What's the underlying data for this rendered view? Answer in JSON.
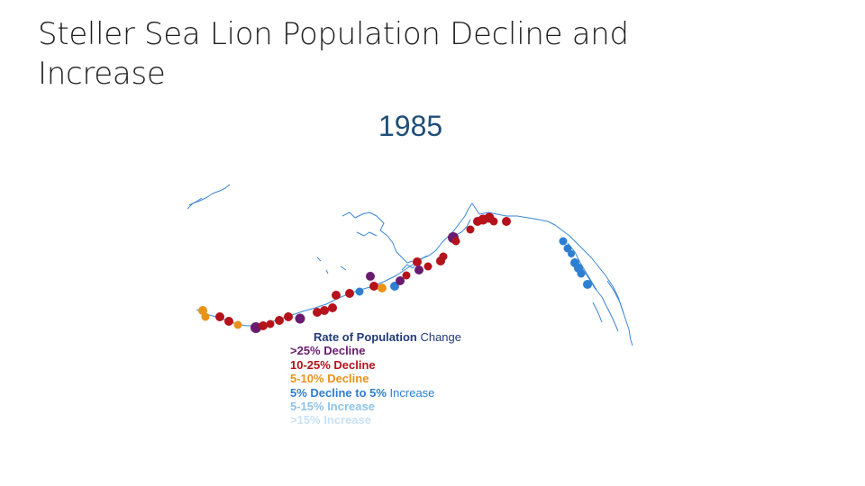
{
  "title": "Steller Sea Lion Population Decline and Increase",
  "year": "1985",
  "legend": {
    "title_bold": "Rate of Population",
    "title_light": " Change",
    "items": [
      {
        "label": ">25% Decline",
        "color": "#6a1b6e"
      },
      {
        "label": "10-25% Decline",
        "color": "#b5121b"
      },
      {
        "label": "5-10% Decline",
        "color": "#e8931a"
      },
      {
        "label_bold": "5% Decline to 5%",
        "label_light": " Increase",
        "color": "#2e7fd1"
      },
      {
        "label": "5-15% Increase",
        "color": "#8ec3ea"
      },
      {
        "label": ">15% Increase",
        "color": "#c9e2f5"
      }
    ]
  },
  "map": {
    "region": "Alaska coastline",
    "site_categories": {
      "gt25_decline": "#6a1b6e",
      "d10_25": "#b5121b",
      "d5_10": "#e8931a",
      "stable": "#2e7fd1"
    }
  }
}
